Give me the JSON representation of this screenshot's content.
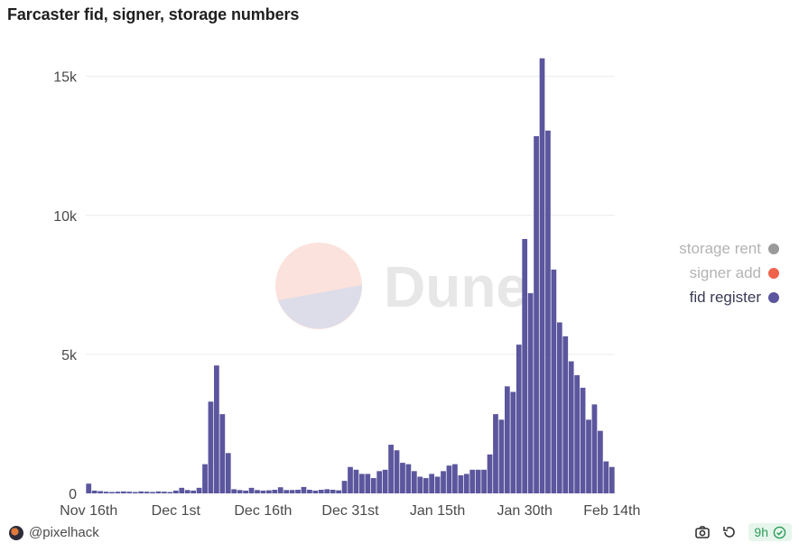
{
  "title": "Farcaster fid, signer, storage numbers",
  "watermark": {
    "text": "Dune"
  },
  "footer": {
    "user": "@pixelhack",
    "freshness": "9h",
    "icons": [
      "camera-icon",
      "refresh-icon",
      "check-circle-icon"
    ]
  },
  "colors": {
    "fid_register": "#5b569d",
    "signer_add": "#f0634b",
    "storage_rent": "#9a9a9a",
    "grid": "#ececec"
  },
  "chart_data": {
    "type": "bar",
    "title": "Farcaster fid, signer, storage numbers",
    "xlabel": "",
    "ylabel": "",
    "ylim": [
      0,
      15000
    ],
    "y_ticks": [
      {
        "value": 0,
        "label": "0"
      },
      {
        "value": 5000,
        "label": "5k"
      },
      {
        "value": 10000,
        "label": "10k"
      },
      {
        "value": 15000,
        "label": "15k"
      }
    ],
    "x_ticks": [
      {
        "index": 0,
        "label": "Nov 16th"
      },
      {
        "index": 15,
        "label": "Dec 1st"
      },
      {
        "index": 30,
        "label": "Dec 16th"
      },
      {
        "index": 45,
        "label": "Dec 31st"
      },
      {
        "index": 60,
        "label": "Jan 15th"
      },
      {
        "index": 75,
        "label": "Jan 30th"
      },
      {
        "index": 90,
        "label": "Feb 14th"
      }
    ],
    "legend": {
      "position": "right",
      "entries": [
        {
          "name": "storage rent",
          "active": false
        },
        {
          "name": "signer add",
          "active": false
        },
        {
          "name": "fid register",
          "active": true
        }
      ]
    },
    "grid": true,
    "series": [
      {
        "name": "fid register",
        "values": [
          350,
          100,
          80,
          60,
          50,
          60,
          70,
          60,
          50,
          70,
          60,
          50,
          70,
          60,
          50,
          100,
          200,
          120,
          100,
          200,
          1050,
          3300,
          4600,
          2850,
          1450,
          150,
          120,
          100,
          200,
          120,
          100,
          110,
          130,
          220,
          120,
          120,
          130,
          230,
          130,
          100,
          130,
          150,
          130,
          110,
          450,
          950,
          850,
          700,
          700,
          550,
          800,
          850,
          1750,
          1550,
          1100,
          1050,
          800,
          600,
          550,
          700,
          600,
          800,
          1000,
          1050,
          650,
          700,
          850,
          850,
          850,
          1400,
          2850,
          2650,
          3850,
          3650,
          5350,
          9150,
          7200,
          12850,
          15650,
          13050,
          8050,
          6150,
          5650,
          4750,
          4250,
          3800,
          2650,
          3200,
          2250,
          1150,
          950
        ]
      }
    ]
  }
}
